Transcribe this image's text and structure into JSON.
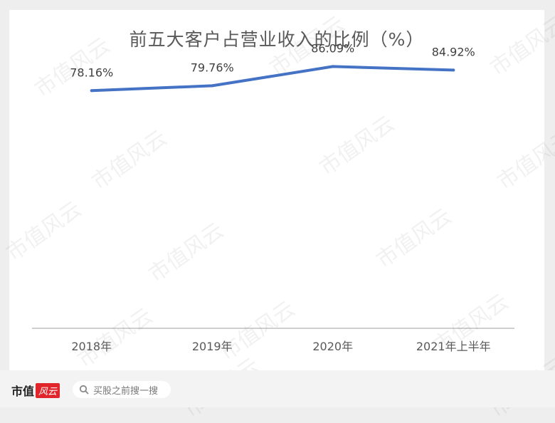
{
  "title": "前五大客户占营业收入的比例（%）",
  "watermark_text": "市值风云",
  "footer": {
    "brand_text": "市值",
    "brand_badge": "风云",
    "search_placeholder": "买股之前搜一搜"
  },
  "chart_data": {
    "type": "line",
    "title": "前五大客户占营业收入的比例（%）",
    "categories": [
      "2018年",
      "2019年",
      "2020年",
      "2021年上半年"
    ],
    "values": [
      78.16,
      79.76,
      86.09,
      84.92
    ],
    "data_labels": [
      "78.16%",
      "79.76%",
      "86.09%",
      "84.92%"
    ],
    "ylim": [
      0,
      100
    ],
    "grid": false,
    "legend": "none",
    "line_color": "#4472c4"
  }
}
